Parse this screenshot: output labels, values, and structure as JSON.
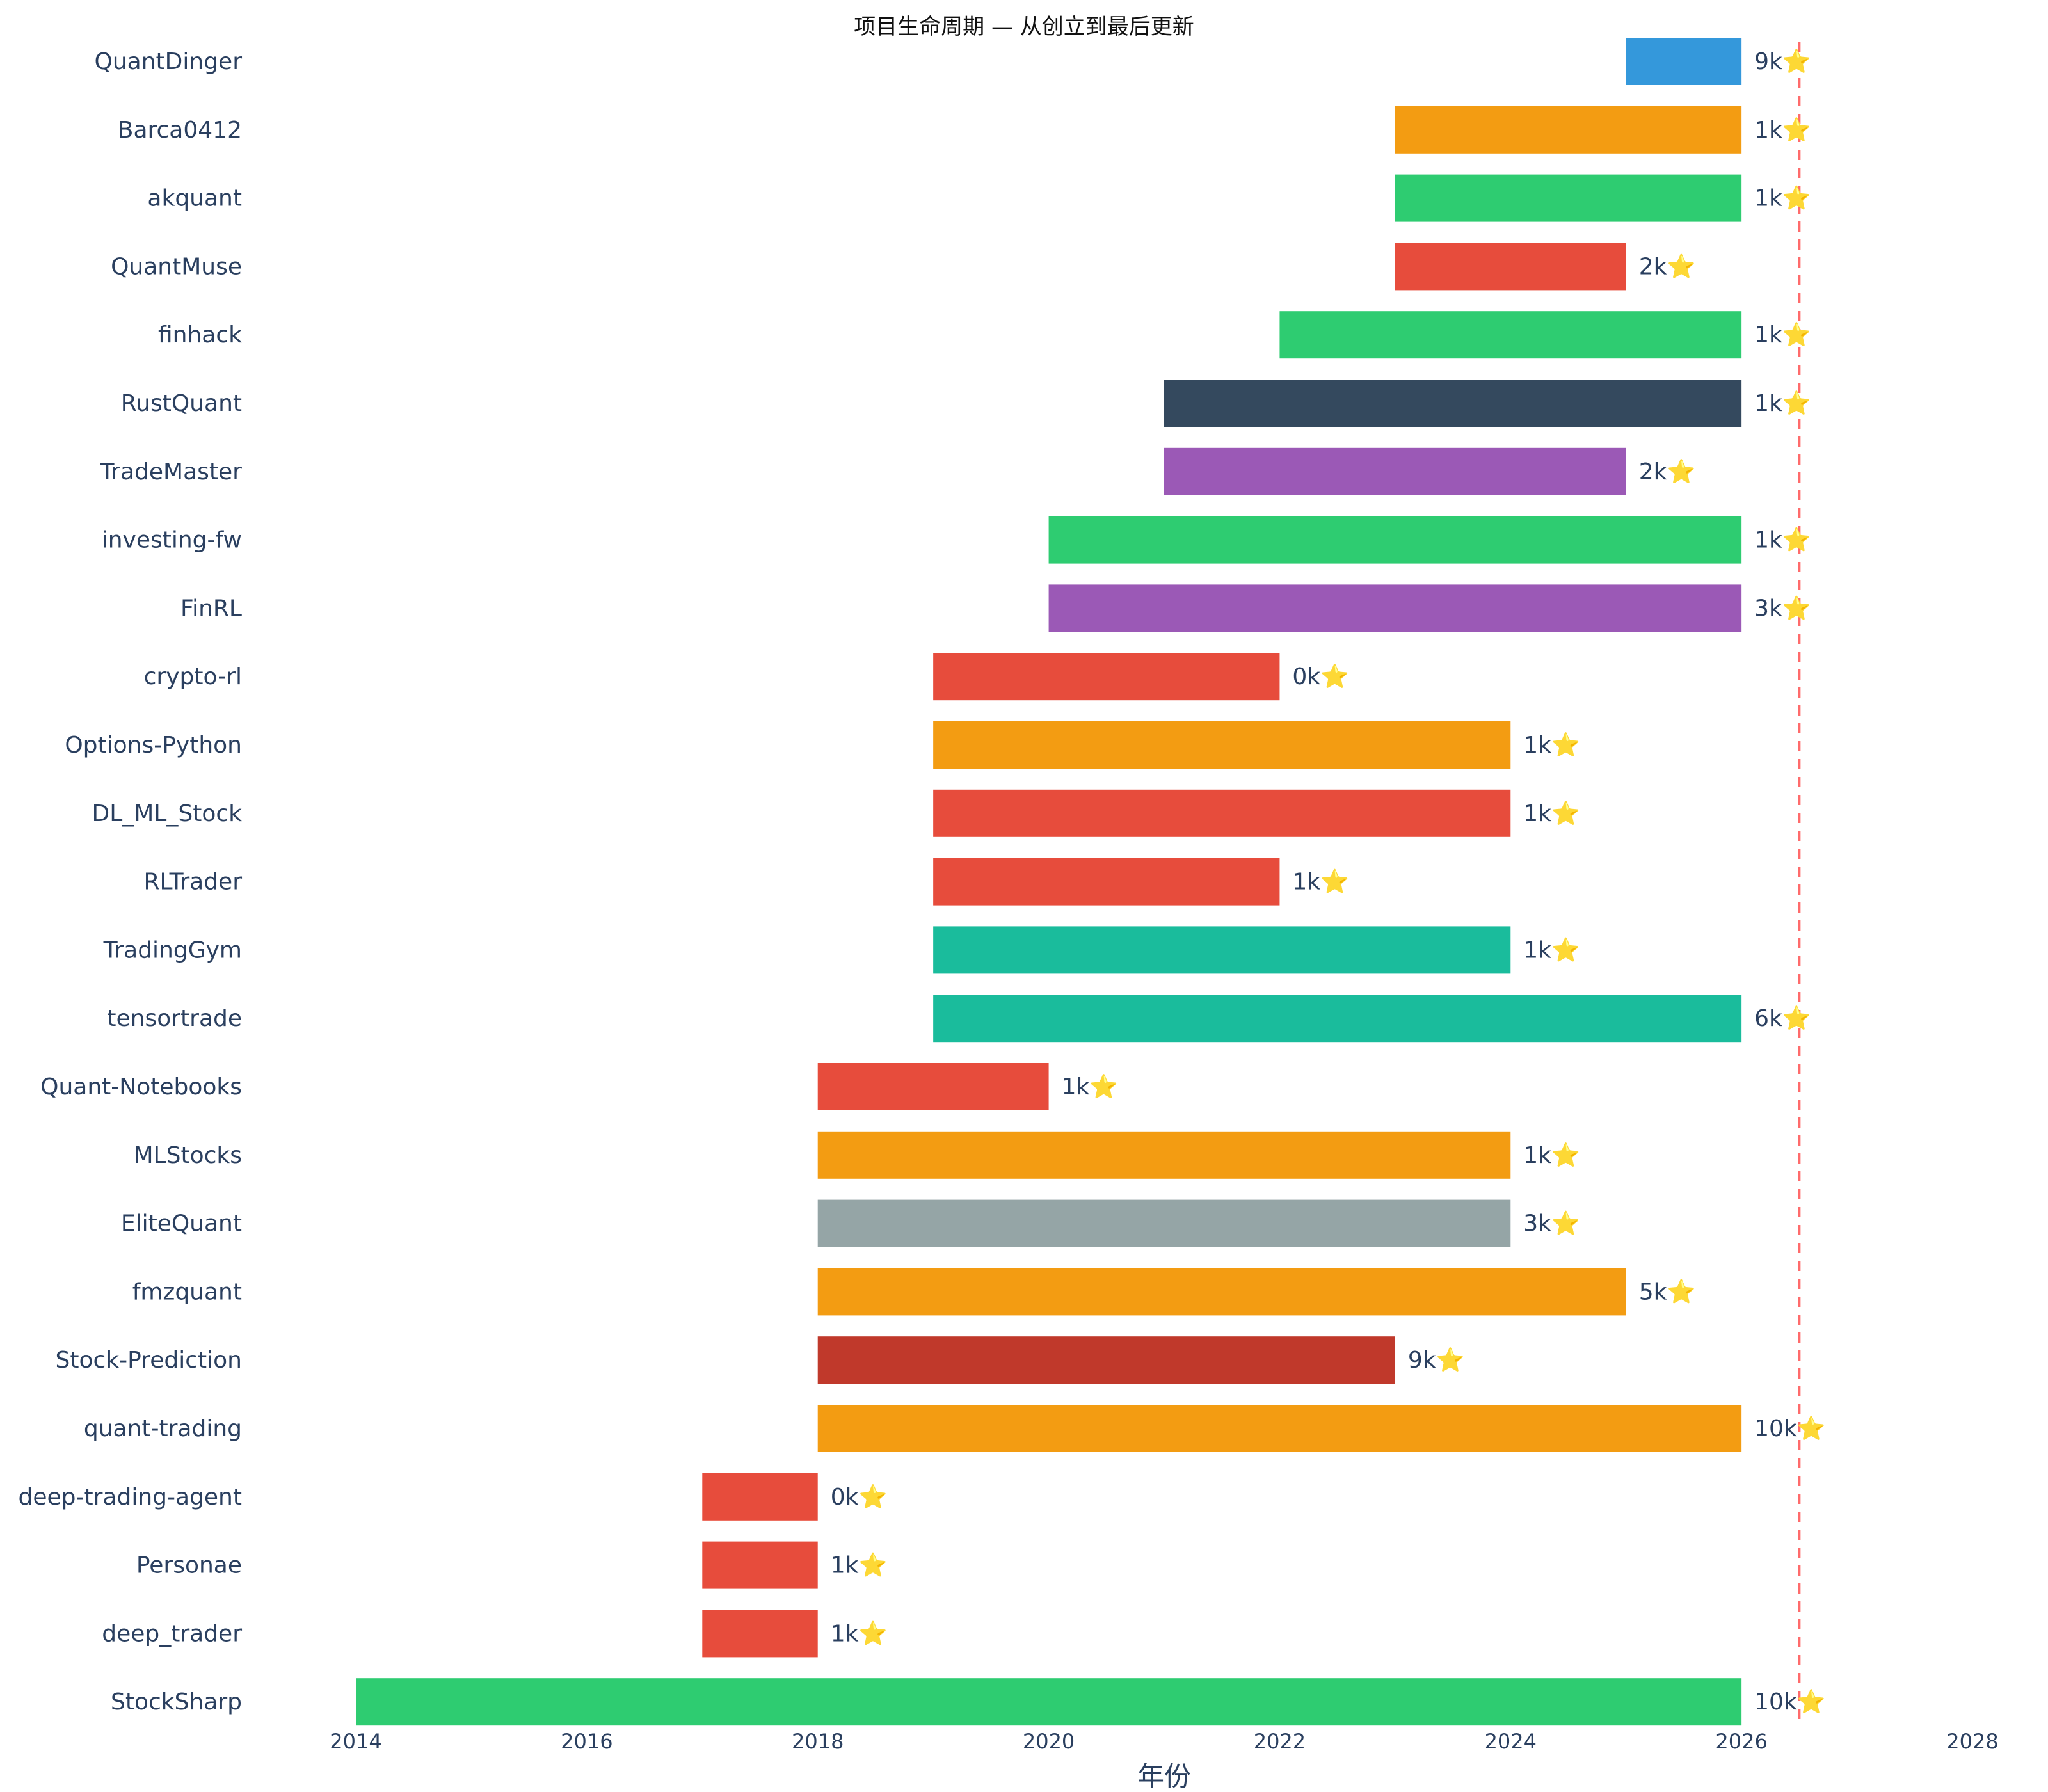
{
  "chart_data": {
    "type": "bar",
    "orientation": "horizontal-range",
    "title": "项目生命周期 — 从创立到最后更新",
    "xlabel": "年份",
    "ylabel": "",
    "xlim": [
      2014,
      2028
    ],
    "xticks": [
      "2014",
      "2016",
      "2018",
      "2020",
      "2022",
      "2024",
      "2026",
      "2028"
    ],
    "reference_line": {
      "x": 2026.5,
      "style": "dashed",
      "color": "#ff6b6b"
    },
    "grid": false,
    "bars": [
      {
        "name": "QuantDinger",
        "start": 2025,
        "end": 2026,
        "label": "9k⭐",
        "color": "#3498db"
      },
      {
        "name": "Barca0412",
        "start": 2023,
        "end": 2026,
        "label": "1k⭐",
        "color": "#f39c12"
      },
      {
        "name": "akquant",
        "start": 2023,
        "end": 2026,
        "label": "1k⭐",
        "color": "#2ecc71"
      },
      {
        "name": "QuantMuse",
        "start": 2023,
        "end": 2025,
        "label": "2k⭐",
        "color": "#e74c3c"
      },
      {
        "name": "finhack",
        "start": 2022,
        "end": 2026,
        "label": "1k⭐",
        "color": "#2ecc71"
      },
      {
        "name": "RustQuant",
        "start": 2021,
        "end": 2026,
        "label": "1k⭐",
        "color": "#34495e"
      },
      {
        "name": "TradeMaster",
        "start": 2021,
        "end": 2025,
        "label": "2k⭐",
        "color": "#9b59b6"
      },
      {
        "name": "investing-fw",
        "start": 2020,
        "end": 2026,
        "label": "1k⭐",
        "color": "#2ecc71"
      },
      {
        "name": "FinRL",
        "start": 2020,
        "end": 2026,
        "label": "3k⭐",
        "color": "#9b59b6"
      },
      {
        "name": "crypto-rl",
        "start": 2019,
        "end": 2022,
        "label": "0k⭐",
        "color": "#e74c3c"
      },
      {
        "name": "Options-Python",
        "start": 2019,
        "end": 2024,
        "label": "1k⭐",
        "color": "#f39c12"
      },
      {
        "name": "DL_ML_Stock",
        "start": 2019,
        "end": 2024,
        "label": "1k⭐",
        "color": "#e74c3c"
      },
      {
        "name": "RLTrader",
        "start": 2019,
        "end": 2022,
        "label": "1k⭐",
        "color": "#e74c3c"
      },
      {
        "name": "TradingGym",
        "start": 2019,
        "end": 2024,
        "label": "1k⭐",
        "color": "#1abc9c"
      },
      {
        "name": "tensortrade",
        "start": 2019,
        "end": 2026,
        "label": "6k⭐",
        "color": "#1abc9c"
      },
      {
        "name": "Quant-Notebooks",
        "start": 2018,
        "end": 2020,
        "label": "1k⭐",
        "color": "#e74c3c"
      },
      {
        "name": "MLStocks",
        "start": 2018,
        "end": 2024,
        "label": "1k⭐",
        "color": "#f39c12"
      },
      {
        "name": "EliteQuant",
        "start": 2018,
        "end": 2024,
        "label": "3k⭐",
        "color": "#95a5a6"
      },
      {
        "name": "fmzquant",
        "start": 2018,
        "end": 2025,
        "label": "5k⭐",
        "color": "#f39c12"
      },
      {
        "name": "Stock-Prediction",
        "start": 2018,
        "end": 2023,
        "label": "9k⭐",
        "color": "#c0392b"
      },
      {
        "name": "quant-trading",
        "start": 2018,
        "end": 2026,
        "label": "10k⭐",
        "color": "#f39c12"
      },
      {
        "name": "deep-trading-agent",
        "start": 2017,
        "end": 2018,
        "label": "0k⭐",
        "color": "#e74c3c"
      },
      {
        "name": "Personae",
        "start": 2017,
        "end": 2018,
        "label": "1k⭐",
        "color": "#e74c3c"
      },
      {
        "name": "deep_trader",
        "start": 2017,
        "end": 2018,
        "label": "1k⭐",
        "color": "#e74c3c"
      },
      {
        "name": "StockSharp",
        "start": 2014,
        "end": 2026,
        "label": "10k⭐",
        "color": "#2ecc71"
      }
    ]
  }
}
